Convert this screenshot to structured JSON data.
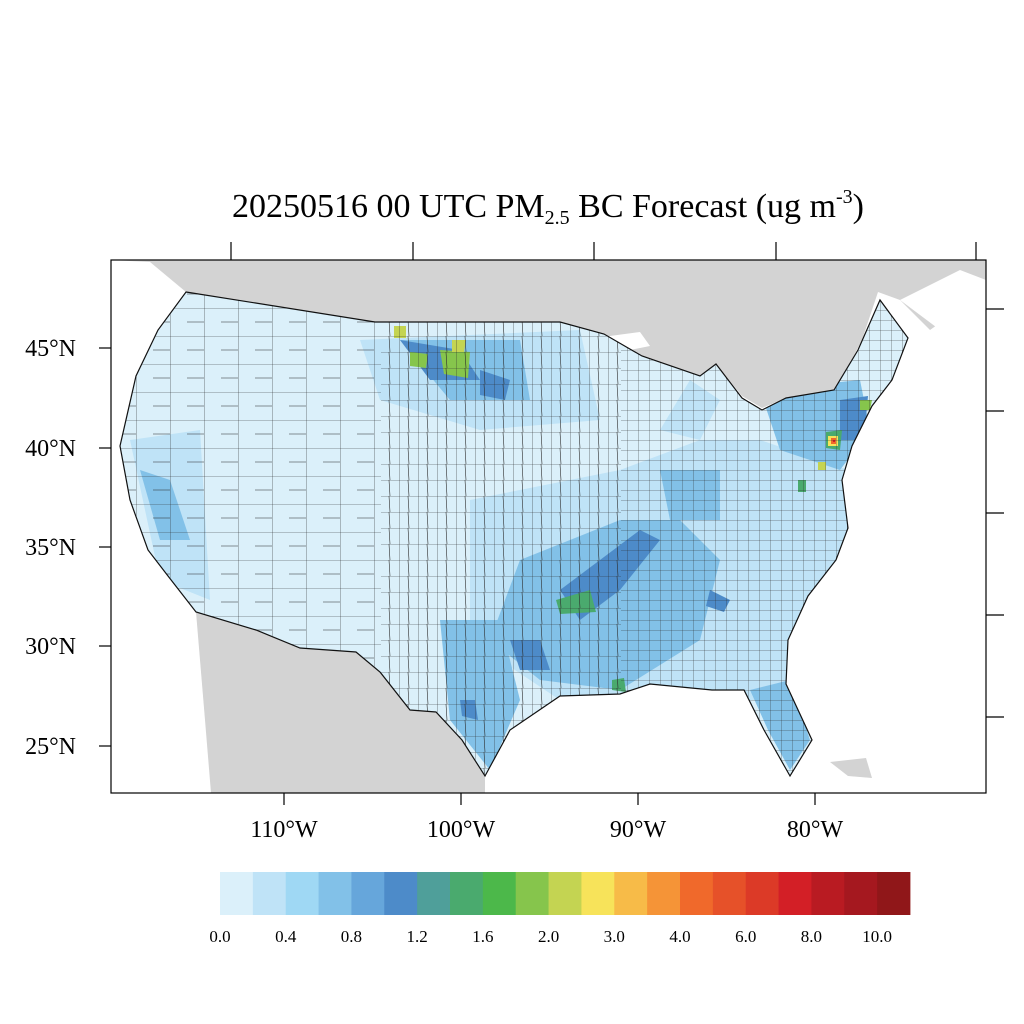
{
  "title": {
    "main": "20250516 00 UTC PM",
    "sub": "2.5",
    "mid": " BC Forecast (ug m",
    "sup": "-3",
    "end": ")"
  },
  "axes": {
    "lat_labels": [
      "45°N",
      "40°N",
      "35°N",
      "30°N",
      "25°N"
    ],
    "lon_labels": [
      "110°W",
      "100°W",
      "90°W",
      "80°W"
    ]
  },
  "colorbar": {
    "labels": [
      "0.0",
      "0.4",
      "0.8",
      "1.2",
      "1.6",
      "2.0",
      "3.0",
      "4.0",
      "6.0",
      "8.0",
      "10.0"
    ],
    "colors": [
      "#dbf0fa",
      "#bfe3f7",
      "#9fd8f4",
      "#82c1e8",
      "#66a6db",
      "#4d8bc9",
      "#4f9f9a",
      "#4aaa6e",
      "#4cb84a",
      "#86c54c",
      "#c4d452",
      "#f7e35a",
      "#f7bb48",
      "#f59437",
      "#f0692b",
      "#e65129",
      "#dc3a27",
      "#d31f26",
      "#b91b22",
      "#a5181f",
      "#901719"
    ]
  },
  "chart_data": {
    "type": "choropleth",
    "title": "20250516 00 UTC PM2.5 BC Forecast (ug m-3)",
    "region": "Contiguous United States (county level)",
    "lat_ticks": [
      45,
      40,
      35,
      30,
      25
    ],
    "lon_ticks": [
      -110,
      -100,
      -90,
      -80
    ],
    "levels": [
      0.0,
      0.4,
      0.8,
      1.2,
      1.6,
      2.0,
      3.0,
      4.0,
      6.0,
      8.0,
      10.0
    ],
    "colors": {
      "land_background": "#d3d3d3",
      "water": "#ffffff",
      "county_border": "#222222"
    }
  }
}
